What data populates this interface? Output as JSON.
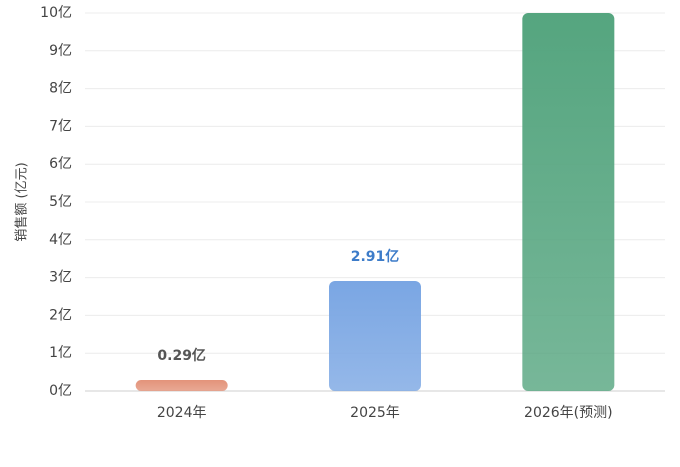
{
  "chart_data": {
    "type": "bar",
    "y_label": "销售额 (亿元)",
    "categories": [
      "2024年",
      "2025年",
      "2026年(预测)"
    ],
    "values": [
      0.29,
      2.91,
      10
    ],
    "value_labels": [
      "0.29亿",
      "2.91亿",
      null
    ],
    "colors": [
      "#e3937a",
      "#7aa6e3",
      "#55a57f"
    ],
    "value_label_colors": [
      "#555555",
      "#3d7cc9",
      null
    ],
    "ylim": [
      0,
      10
    ],
    "yticks": [
      {
        "value": 0,
        "label": "0亿"
      },
      {
        "value": 1,
        "label": "1亿"
      },
      {
        "value": 2,
        "label": "2亿"
      },
      {
        "value": 3,
        "label": "3亿"
      },
      {
        "value": 4,
        "label": "4亿"
      },
      {
        "value": 5,
        "label": "5亿"
      },
      {
        "value": 6,
        "label": "6亿"
      },
      {
        "value": 7,
        "label": "7亿"
      },
      {
        "value": 8,
        "label": "8亿"
      },
      {
        "value": 9,
        "label": "9亿"
      },
      {
        "value": 10,
        "label": "10亿"
      }
    ],
    "grid": true
  }
}
